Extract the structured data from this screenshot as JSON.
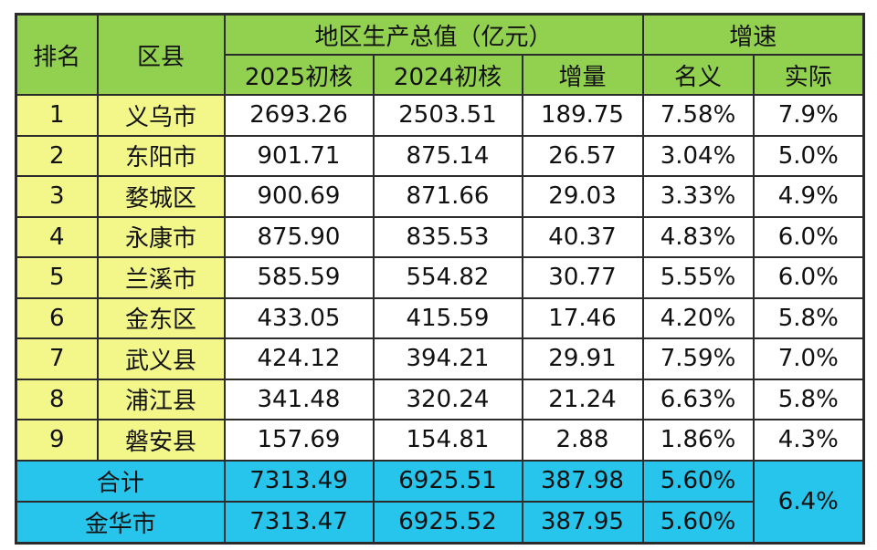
{
  "header": {
    "rank": "排名",
    "county": "区县",
    "gdp_group": "地区生产总值（亿元）",
    "growth_group": "增速",
    "col_2025": "2025初核",
    "col_2024": "2024初核",
    "col_increase": "增量",
    "col_nominal": "名义",
    "col_real": "实际"
  },
  "rows": [
    {
      "rank": "1",
      "county": "义乌市",
      "v2025": "2693.26",
      "v2024": "2503.51",
      "inc": "189.75",
      "nominal": "7.58%",
      "real": "7.9%"
    },
    {
      "rank": "2",
      "county": "东阳市",
      "v2025": "901.71",
      "v2024": "875.14",
      "inc": "26.57",
      "nominal": "3.04%",
      "real": "5.0%"
    },
    {
      "rank": "3",
      "county": "婺城区",
      "v2025": "900.69",
      "v2024": "871.66",
      "inc": "29.03",
      "nominal": "3.33%",
      "real": "4.9%"
    },
    {
      "rank": "4",
      "county": "永康市",
      "v2025": "875.90",
      "v2024": "835.53",
      "inc": "40.37",
      "nominal": "4.83%",
      "real": "6.0%"
    },
    {
      "rank": "5",
      "county": "兰溪市",
      "v2025": "585.59",
      "v2024": "554.82",
      "inc": "30.77",
      "nominal": "5.55%",
      "real": "6.0%"
    },
    {
      "rank": "6",
      "county": "金东区",
      "v2025": "433.05",
      "v2024": "415.59",
      "inc": "17.46",
      "nominal": "4.20%",
      "real": "5.8%"
    },
    {
      "rank": "7",
      "county": "武义县",
      "v2025": "424.12",
      "v2024": "394.21",
      "inc": "29.91",
      "nominal": "7.59%",
      "real": "7.0%"
    },
    {
      "rank": "8",
      "county": "浦江县",
      "v2025": "341.48",
      "v2024": "320.24",
      "inc": "21.24",
      "nominal": "6.63%",
      "real": "5.8%"
    },
    {
      "rank": "9",
      "county": "磐安县",
      "v2025": "157.69",
      "v2024": "154.81",
      "inc": "2.88",
      "nominal": "1.86%",
      "real": "4.3%"
    }
  ],
  "totals": {
    "sum_label": "合计",
    "sum_2025": "7313.49",
    "sum_2024": "6925.51",
    "sum_inc": "387.98",
    "sum_nominal": "5.60%",
    "city_label": "金华市",
    "city_2025": "7313.47",
    "city_2024": "6925.52",
    "city_inc": "387.95",
    "city_nominal": "5.60%",
    "real_shared": "6.4%"
  },
  "colors": {
    "header_bg": "#92d050",
    "name_bg": "#f3f78a",
    "total_bg": "#27c4ec"
  }
}
